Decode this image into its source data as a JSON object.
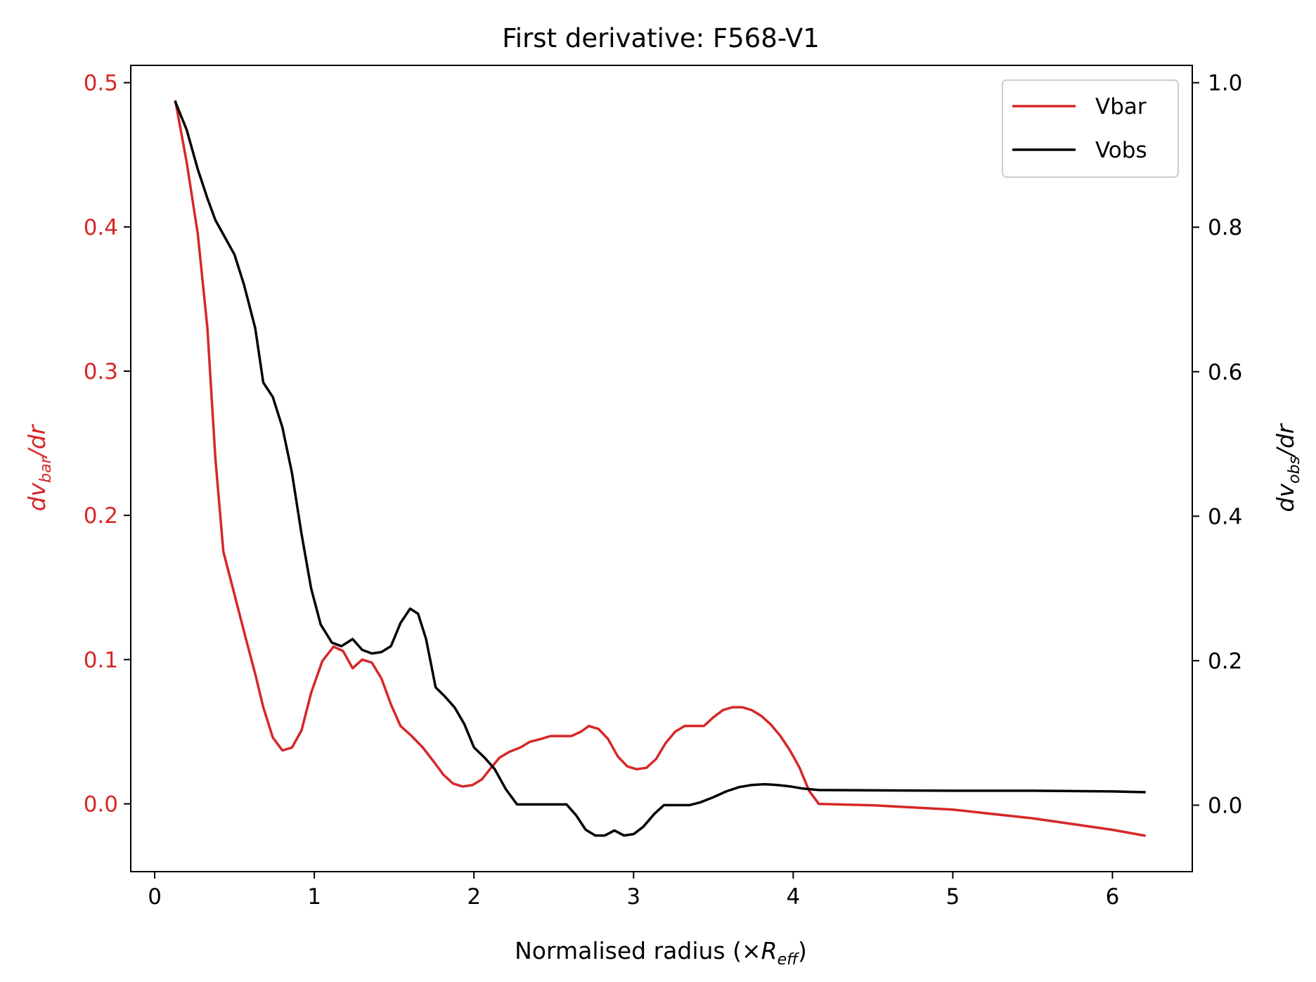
{
  "chart_data": {
    "type": "line",
    "title": "First derivative: F568-V1",
    "xlabel": {
      "main": "Normalised radius (×",
      "italic": "R",
      "sub": "eff",
      "close": ")"
    },
    "ylabel_left": {
      "d": "dv",
      "sub": "bar",
      "tail": "/dr"
    },
    "ylabel_right": {
      "d": "dv",
      "sub": "obs",
      "tail": "/dr"
    },
    "xlim": [
      -0.15,
      6.5
    ],
    "ylim_left": [
      -0.047,
      0.512
    ],
    "ylim_right": [
      -0.092,
      1.024
    ],
    "x_ticks": [
      "0",
      "1",
      "2",
      "3",
      "4",
      "5",
      "6"
    ],
    "x_tick_values": [
      0,
      1,
      2,
      3,
      4,
      5,
      6
    ],
    "y_left_ticks": [
      "0.0",
      "0.1",
      "0.2",
      "0.3",
      "0.4",
      "0.5"
    ],
    "y_left_tick_values": [
      0,
      0.1,
      0.2,
      0.3,
      0.4,
      0.5
    ],
    "y_right_ticks": [
      "0.0",
      "0.2",
      "0.4",
      "0.6",
      "0.8",
      "1.0"
    ],
    "y_right_tick_values": [
      0,
      0.2,
      0.4,
      0.6,
      0.8,
      1.0
    ],
    "legend": {
      "placement": "top-right",
      "entries": [
        "Vbar",
        "Vobs"
      ]
    },
    "colors": {
      "vbar": "#d62728",
      "vobs": "#000000",
      "left_axis": "#d62728",
      "right_axis": "#000000"
    },
    "grid": false,
    "series": [
      {
        "name": "Vbar",
        "axis": "left",
        "x": [
          0.13,
          0.2,
          0.27,
          0.33,
          0.38,
          0.43,
          0.5,
          0.57,
          0.63,
          0.68,
          0.74,
          0.8,
          0.86,
          0.92,
          0.98,
          1.05,
          1.12,
          1.18,
          1.24,
          1.3,
          1.36,
          1.42,
          1.48,
          1.54,
          1.61,
          1.68,
          1.75,
          1.81,
          1.87,
          1.93,
          1.99,
          2.05,
          2.1,
          2.16,
          2.22,
          2.29,
          2.35,
          2.42,
          2.48,
          2.55,
          2.61,
          2.67,
          2.72,
          2.78,
          2.84,
          2.9,
          2.96,
          3.02,
          3.08,
          3.14,
          3.2,
          3.26,
          3.32,
          3.38,
          3.44,
          3.5,
          3.56,
          3.62,
          3.68,
          3.74,
          3.8,
          3.86,
          3.92,
          3.98,
          4.04,
          4.1,
          4.16,
          4.5,
          5.0,
          5.5,
          6.0,
          6.2
        ],
        "values": [
          0.487,
          0.445,
          0.395,
          0.33,
          0.24,
          0.175,
          0.145,
          0.115,
          0.09,
          0.067,
          0.046,
          0.037,
          0.039,
          0.051,
          0.077,
          0.099,
          0.109,
          0.106,
          0.094,
          0.1,
          0.098,
          0.087,
          0.069,
          0.054,
          0.047,
          0.039,
          0.029,
          0.02,
          0.014,
          0.012,
          0.013,
          0.017,
          0.024,
          0.032,
          0.036,
          0.039,
          0.043,
          0.045,
          0.047,
          0.047,
          0.047,
          0.05,
          0.054,
          0.052,
          0.045,
          0.033,
          0.026,
          0.024,
          0.025,
          0.031,
          0.042,
          0.05,
          0.054,
          0.054,
          0.054,
          0.06,
          0.065,
          0.067,
          0.067,
          0.065,
          0.061,
          0.055,
          0.047,
          0.037,
          0.025,
          0.009,
          0.0,
          -0.001,
          -0.004,
          -0.01,
          -0.018,
          -0.022
        ]
      },
      {
        "name": "Vobs",
        "axis": "right",
        "x": [
          0.13,
          0.2,
          0.27,
          0.33,
          0.38,
          0.43,
          0.5,
          0.56,
          0.63,
          0.68,
          0.74,
          0.8,
          0.86,
          0.92,
          0.98,
          1.04,
          1.11,
          1.17,
          1.24,
          1.3,
          1.36,
          1.42,
          1.48,
          1.54,
          1.6,
          1.65,
          1.7,
          1.76,
          1.82,
          1.88,
          1.94,
          2.0,
          2.07,
          2.13,
          2.2,
          2.27,
          2.35,
          2.45,
          2.58,
          2.64,
          2.7,
          2.76,
          2.82,
          2.88,
          2.94,
          3.0,
          3.06,
          3.13,
          3.19,
          3.26,
          3.35,
          3.42,
          3.5,
          3.58,
          3.66,
          3.74,
          3.82,
          3.9,
          3.98,
          4.06,
          4.16,
          5.0,
          5.5,
          6.0,
          6.2
        ],
        "values": [
          0.973,
          0.935,
          0.88,
          0.84,
          0.81,
          0.79,
          0.762,
          0.72,
          0.66,
          0.585,
          0.565,
          0.523,
          0.46,
          0.375,
          0.3,
          0.25,
          0.225,
          0.22,
          0.23,
          0.215,
          0.21,
          0.212,
          0.22,
          0.252,
          0.272,
          0.265,
          0.23,
          0.163,
          0.15,
          0.135,
          0.112,
          0.08,
          0.065,
          0.05,
          0.022,
          0.001,
          0.001,
          0.001,
          0.001,
          -0.014,
          -0.034,
          -0.042,
          -0.042,
          -0.035,
          -0.042,
          -0.04,
          -0.03,
          -0.012,
          0.0,
          0.0,
          0.0,
          0.004,
          0.011,
          0.019,
          0.025,
          0.028,
          0.029,
          0.028,
          0.026,
          0.023,
          0.021,
          0.02,
          0.02,
          0.019,
          0.018
        ]
      }
    ]
  }
}
